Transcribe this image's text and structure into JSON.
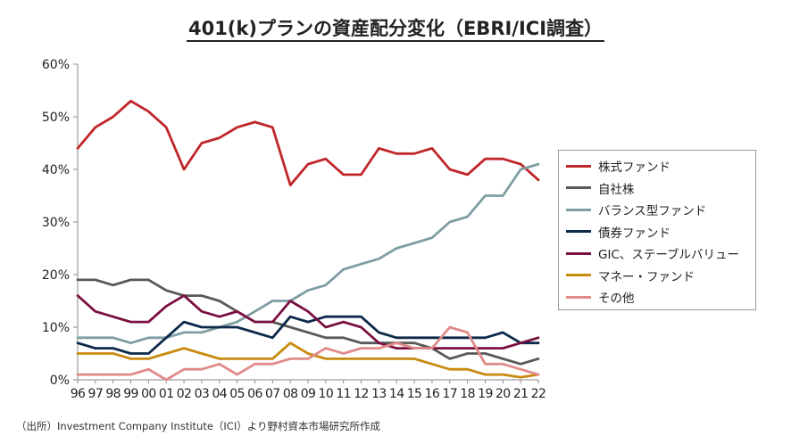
{
  "chart_data": {
    "type": "line",
    "title": "401(k)プランの資産配分変化（EBRI/ICI調査）",
    "x": [
      "96",
      "97",
      "98",
      "99",
      "00",
      "01",
      "02",
      "03",
      "04",
      "05",
      "06",
      "07",
      "08",
      "09",
      "10",
      "11",
      "12",
      "13",
      "14",
      "15",
      "16",
      "17",
      "18",
      "19",
      "20",
      "21",
      "22"
    ],
    "ylim": [
      0,
      60
    ],
    "yticks": [
      "0%",
      "10%",
      "20%",
      "30%",
      "40%",
      "50%",
      "60%"
    ],
    "grid": false,
    "legend_position": "right",
    "series": [
      {
        "name": "株式ファンド",
        "color": "#c0262a",
        "values": [
          44,
          48,
          50,
          53,
          51,
          48,
          40,
          45,
          46,
          48,
          49,
          48,
          37,
          41,
          42,
          39,
          39,
          44,
          43,
          43,
          44,
          40,
          39,
          42,
          42,
          41,
          38
        ]
      },
      {
        "name": "自社株",
        "color": "#595959",
        "values": [
          19,
          19,
          18,
          19,
          19,
          17,
          16,
          16,
          15,
          13,
          11,
          11,
          10,
          9,
          8,
          8,
          7,
          7,
          7,
          7,
          6,
          4,
          5,
          5,
          4,
          3,
          4
        ]
      },
      {
        "name": "バランス型ファンド",
        "color": "#7f9ea3",
        "values": [
          8,
          8,
          8,
          7,
          8,
          8,
          9,
          9,
          10,
          11,
          13,
          15,
          15,
          17,
          18,
          21,
          22,
          23,
          25,
          26,
          27,
          30,
          31,
          35,
          35,
          40,
          41
        ]
      },
      {
        "name": "債券ファンド",
        "color": "#0d2a4a",
        "values": [
          7,
          6,
          6,
          5,
          5,
          8,
          11,
          10,
          10,
          10,
          9,
          8,
          12,
          11,
          12,
          12,
          12,
          9,
          8,
          8,
          8,
          8,
          8,
          8,
          9,
          7,
          7
        ]
      },
      {
        "name": "GIC、ステーブルバリュー",
        "color": "#7a1040",
        "values": [
          16,
          13,
          12,
          11,
          11,
          14,
          16,
          13,
          12,
          13,
          11,
          11,
          15,
          13,
          10,
          11,
          10,
          7,
          6,
          6,
          6,
          6,
          6,
          6,
          6,
          7,
          8
        ]
      },
      {
        "name": "マネー・ファンド",
        "color": "#c98a10",
        "values": [
          5,
          5,
          5,
          4,
          4,
          5,
          6,
          5,
          4,
          4,
          4,
          4,
          7,
          5,
          4,
          4,
          4,
          4,
          4,
          4,
          3,
          2,
          2,
          1,
          1,
          0.5,
          1
        ]
      },
      {
        "name": "その他",
        "color": "#e08a8a",
        "values": [
          1,
          1,
          1,
          1,
          2,
          0,
          2,
          2,
          3,
          1,
          3,
          3,
          4,
          4,
          6,
          5,
          6,
          6,
          7,
          6,
          6,
          10,
          9,
          3,
          3,
          2,
          1
        ]
      }
    ]
  },
  "source_note": "（出所）Investment Company Institute（ICI）より野村資本市場研究所作成"
}
